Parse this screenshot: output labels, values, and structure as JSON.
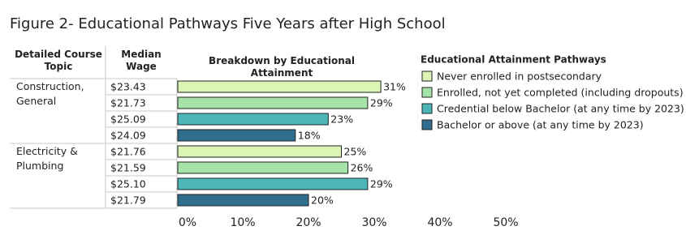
{
  "chart_data": {
    "type": "bar",
    "orientation": "horizontal",
    "title": "Figure 2- Educational Pathways Five Years after High School",
    "column_headers": [
      "Detailed Course Topic",
      "Median Wage",
      "Breakdown by Educational Attainment"
    ],
    "groups": [
      "Construction, General",
      "Electricity & Plumbing"
    ],
    "wages": [
      "$23.43",
      "$21.73",
      "$25.09",
      "$24.09",
      "$21.76",
      "$21.59",
      "$25.10",
      "$21.79"
    ],
    "values": [
      31,
      29,
      23,
      18,
      25,
      26,
      29,
      20
    ],
    "value_labels": [
      "31%",
      "29%",
      "23%",
      "18%",
      "25%",
      "26%",
      "29%",
      "20%"
    ],
    "xlim": [
      0,
      50
    ],
    "xticks": [
      {
        "value": 0,
        "label": "0%"
      },
      {
        "value": 10,
        "label": "10%"
      },
      {
        "value": 20,
        "label": "20%"
      },
      {
        "value": 30,
        "label": "30%"
      },
      {
        "value": 40,
        "label": "40%"
      },
      {
        "value": 50,
        "label": "50%"
      }
    ],
    "legend": {
      "title": "Educational Attainment Pathways",
      "series": [
        {
          "name": "Never enrolled in postsecondary",
          "color": "#dcf5b4"
        },
        {
          "name": "Enrolled, not yet completed (including dropouts)",
          "color": "#a6e3a8"
        },
        {
          "name": "Credential below Bachelor (at any time by 2023)",
          "color": "#4cb6b9"
        },
        {
          "name": "Bachelor or above (at any time by 2023)",
          "color": "#2f6f8d"
        }
      ]
    }
  }
}
